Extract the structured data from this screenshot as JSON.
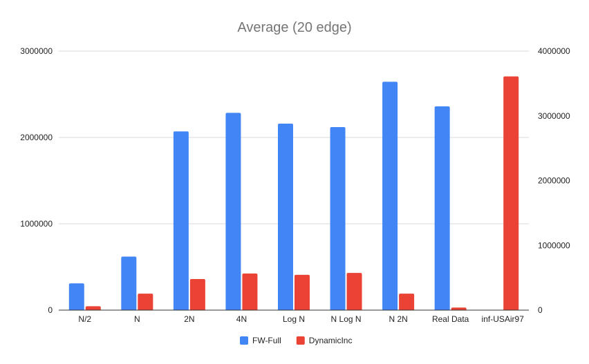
{
  "chart_data": {
    "type": "bar",
    "title": "Average (20 edge)",
    "categories": [
      "N/2",
      "N",
      "2N",
      "4N",
      "Log N",
      "N Log N",
      "N 2N",
      "Real Data",
      "inf-USAir97"
    ],
    "series": [
      {
        "name": "FW-Full",
        "axis": "left",
        "color": "#4285f4",
        "values": [
          310000,
          620000,
          2070000,
          2285000,
          2160000,
          2120000,
          2645000,
          2360000,
          null
        ]
      },
      {
        "name": "DynamicInc",
        "axis": "right",
        "color": "#ea4335",
        "values": [
          60000,
          255000,
          480000,
          565000,
          545000,
          575000,
          255000,
          40000,
          3610000
        ]
      }
    ],
    "y_left": {
      "min": 0,
      "max": 3000000,
      "ticks": [
        "0",
        "1000000",
        "2000000",
        "3000000"
      ]
    },
    "y_right": {
      "min": 0,
      "max": 4000000,
      "ticks": [
        "0",
        "1000000",
        "2000000",
        "3000000",
        "4000000"
      ]
    },
    "grid": true,
    "legend_position": "bottom"
  }
}
